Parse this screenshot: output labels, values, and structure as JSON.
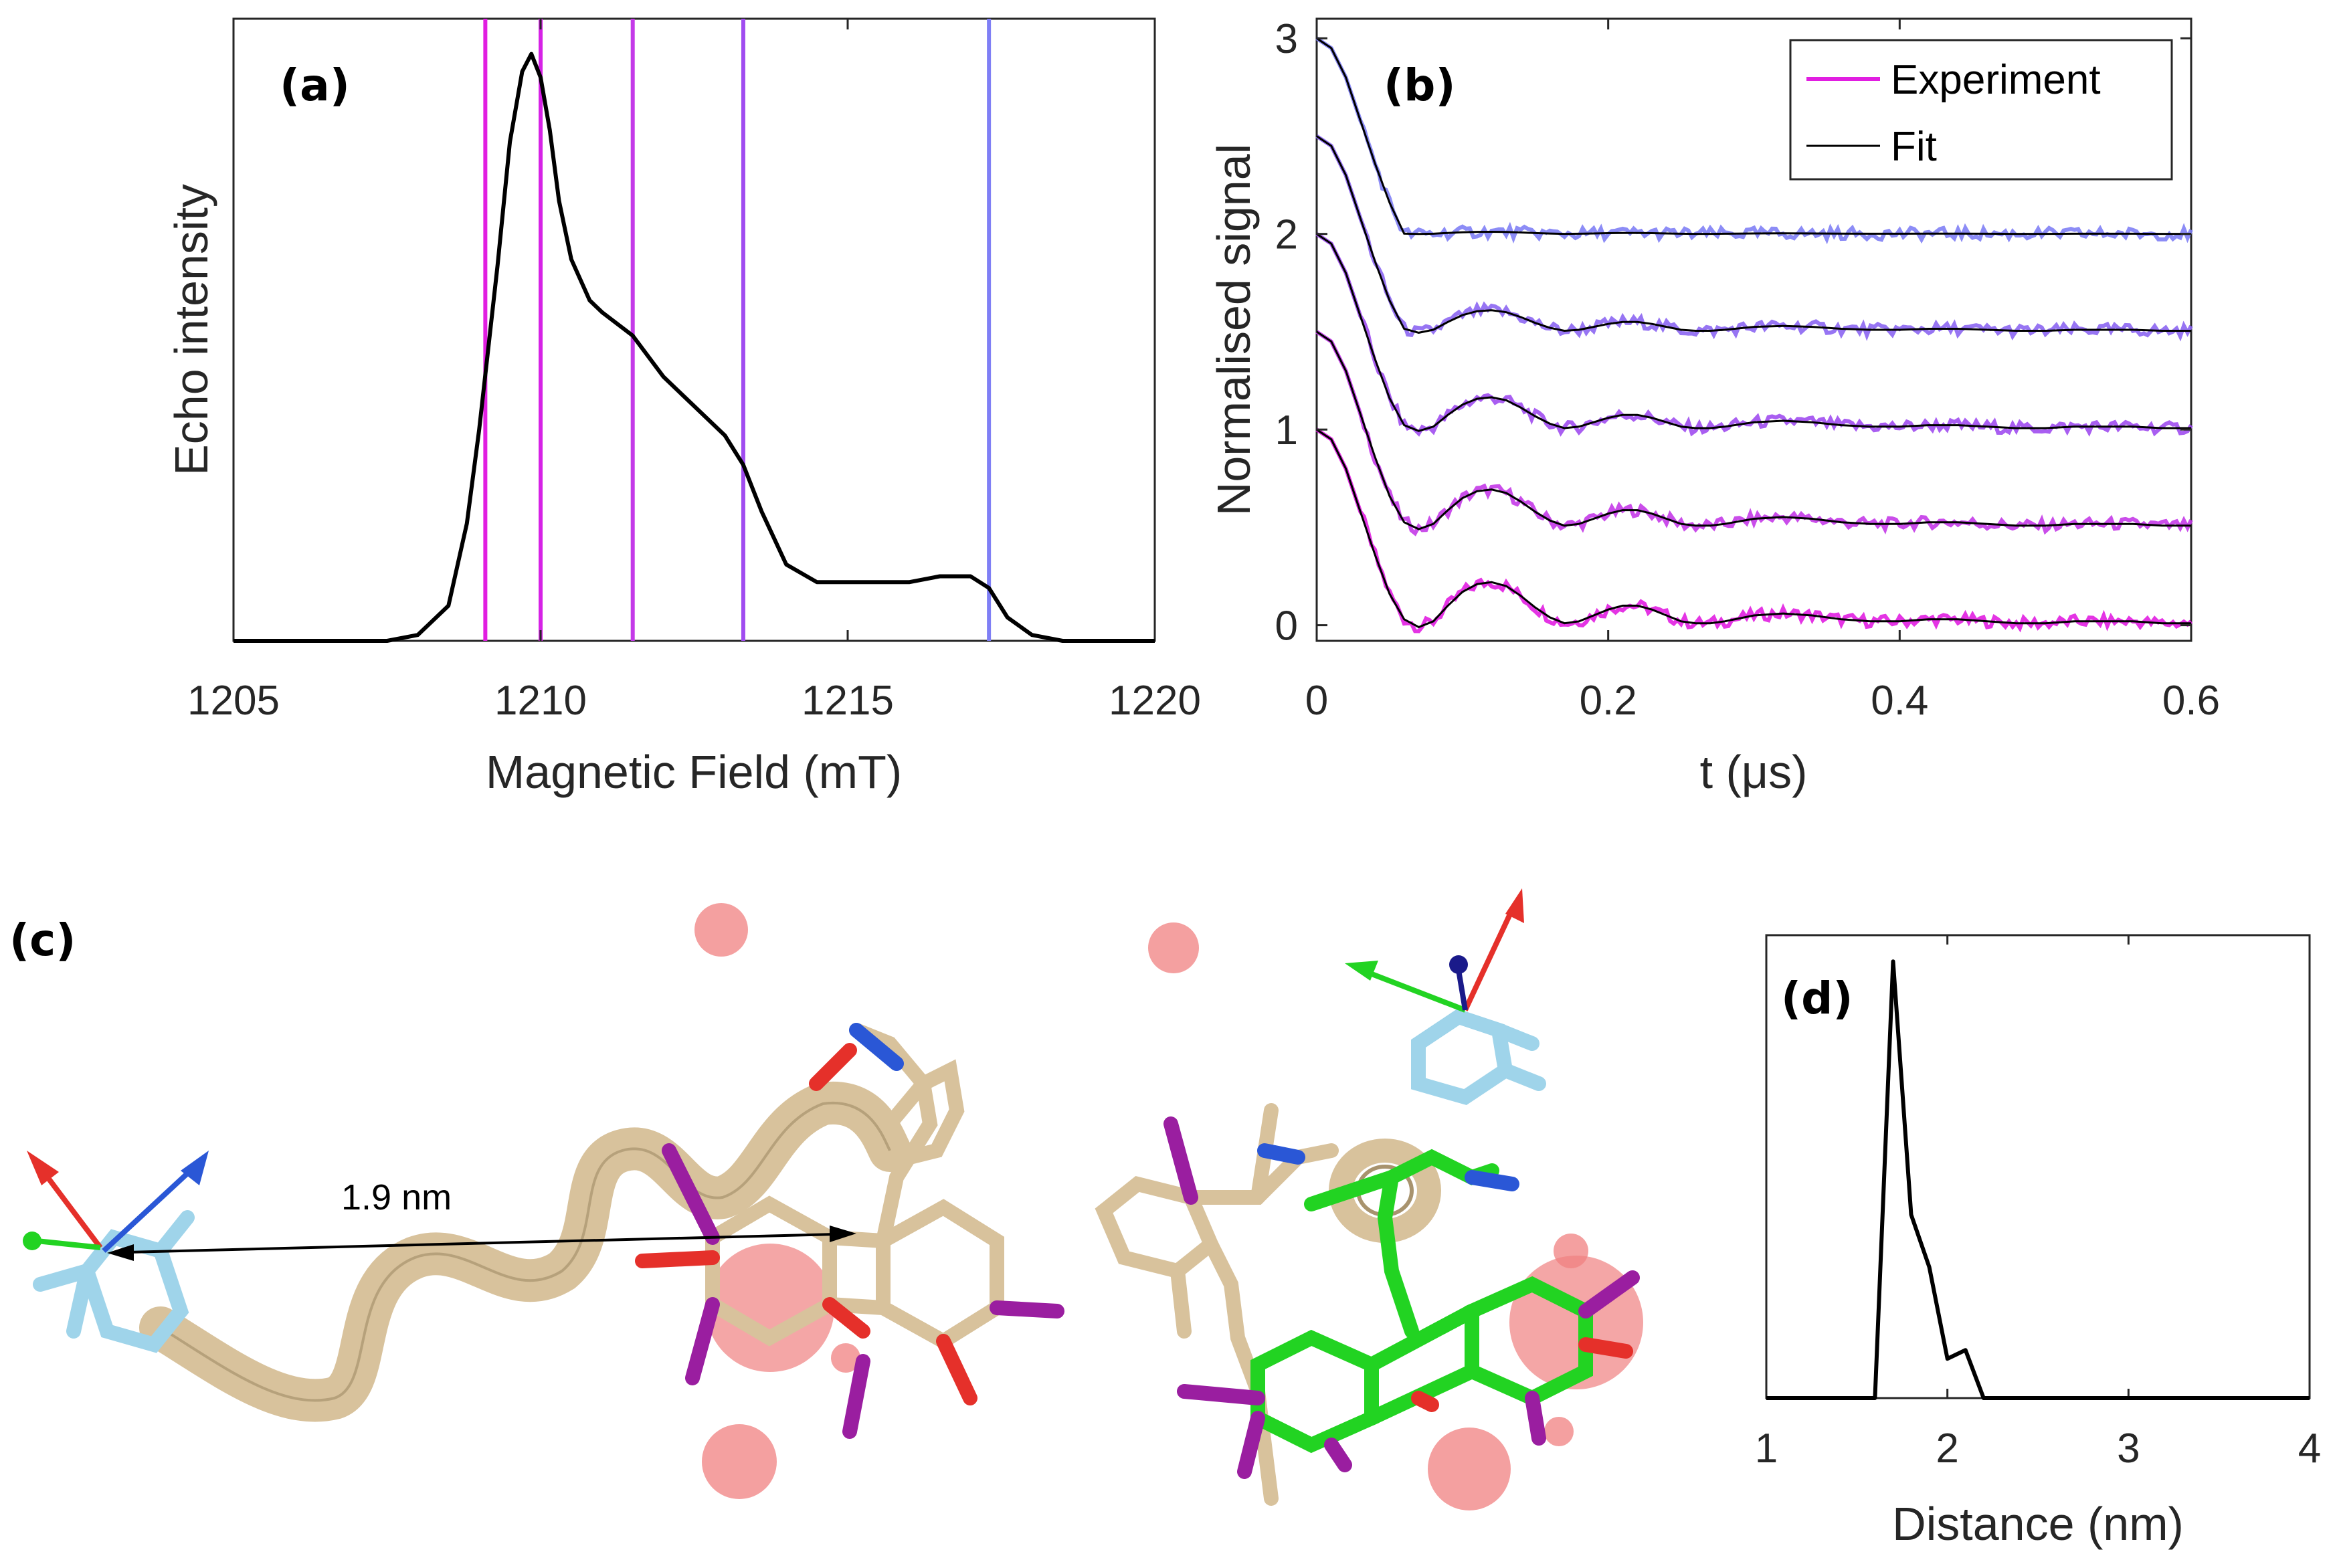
{
  "colors": {
    "axis": "#262626",
    "spectrum": "#000000",
    "experiment_magenta": "#e11ee1",
    "experiment_violet": "#a04cf0",
    "experiment_blue": "#7f7ff5",
    "fit": "#000000",
    "ribbon": "#d8c29c",
    "spin_label": "#9fd4ea",
    "ligand_green": "#22d322",
    "atom_red": "#e5302a",
    "atom_blue": "#2a57d6",
    "atom_purple": "#9a1ea0",
    "ion_sphere": "#f08080"
  },
  "panel_c": {
    "tag": "(c)",
    "distance_annotation": "1.9 nm"
  },
  "chart_data": [
    {
      "id": "a",
      "type": "line",
      "tag": "(a)",
      "xlabel": "Magnetic Field (mT)",
      "ylabel": "Echo intensity",
      "xlim": [
        1205,
        1220
      ],
      "ylim": [
        0,
        1.06
      ],
      "xticks": [
        1205,
        1210,
        1215,
        1220
      ],
      "xtick_labels": [
        "1205",
        "1210",
        "1215",
        "1220"
      ],
      "grid": false,
      "series": [
        {
          "role": "spectrum",
          "x": [
            1205,
            1207.5,
            1208,
            1208.5,
            1208.8,
            1209,
            1209.3,
            1209.5,
            1209.7,
            1209.85,
            1210,
            1210.15,
            1210.3,
            1210.5,
            1210.8,
            1211,
            1211.5,
            1212,
            1212.5,
            1213,
            1213.3,
            1213.6,
            1214,
            1214.5,
            1215,
            1216,
            1216.5,
            1217,
            1217.3,
            1217.6,
            1218,
            1218.5,
            1220
          ],
          "y": [
            0.0,
            0.0,
            0.01,
            0.06,
            0.2,
            0.36,
            0.64,
            0.85,
            0.97,
            1.0,
            0.96,
            0.87,
            0.75,
            0.65,
            0.58,
            0.56,
            0.52,
            0.45,
            0.4,
            0.35,
            0.3,
            0.22,
            0.13,
            0.1,
            0.1,
            0.1,
            0.11,
            0.11,
            0.09,
            0.04,
            0.01,
            0.0,
            0.0
          ]
        }
      ],
      "marker_lines": [
        {
          "x": 1209.1,
          "color": "#e11ee1"
        },
        {
          "x": 1210.0,
          "color": "#d622e6"
        },
        {
          "x": 1211.5,
          "color": "#c43ae8"
        },
        {
          "x": 1213.3,
          "color": "#a04cf0"
        },
        {
          "x": 1217.3,
          "color": "#7f7ff5"
        }
      ]
    },
    {
      "id": "b",
      "type": "line",
      "tag": "(b)",
      "xlabel": "t (μs)",
      "ylabel": "Normalised signal",
      "xlim": [
        0,
        0.6
      ],
      "ylim": [
        -0.08,
        3.1
      ],
      "xticks": [
        0,
        0.2,
        0.4,
        0.6
      ],
      "xtick_labels": [
        "0",
        "0.2",
        "0.4",
        "0.6"
      ],
      "yticks": [
        0,
        1,
        2,
        3
      ],
      "ytick_labels": [
        "0",
        "1",
        "2",
        "3"
      ],
      "grid": false,
      "legend": {
        "position": "top-right",
        "entries": [
          {
            "label": "Experiment",
            "color": "#e11ee1"
          },
          {
            "label": "Fit",
            "color": "#000000"
          }
        ]
      },
      "trace_shape": {
        "t": [
          0,
          0.01,
          0.02,
          0.03,
          0.04,
          0.05,
          0.06,
          0.07,
          0.08,
          0.09,
          0.1,
          0.11,
          0.12,
          0.13,
          0.14,
          0.15,
          0.16,
          0.17,
          0.18,
          0.19,
          0.2,
          0.21,
          0.22,
          0.23,
          0.24,
          0.25,
          0.26,
          0.27,
          0.28,
          0.3,
          0.32,
          0.34,
          0.36,
          0.38,
          0.4,
          0.42,
          0.44,
          0.46,
          0.48,
          0.5,
          0.52,
          0.54,
          0.56,
          0.58,
          0.6
        ],
        "fit_decay": [
          1.0,
          0.95,
          0.8,
          0.58,
          0.36,
          0.16,
          0.03,
          -0.01,
          0.02,
          0.1,
          0.17,
          0.21,
          0.22,
          0.2,
          0.15,
          0.09,
          0.04,
          0.01,
          0.02,
          0.05,
          0.08,
          0.1,
          0.1,
          0.08,
          0.05,
          0.02,
          0.01,
          0.01,
          0.02,
          0.05,
          0.06,
          0.05,
          0.03,
          0.02,
          0.02,
          0.03,
          0.03,
          0.02,
          0.01,
          0.01,
          0.02,
          0.02,
          0.02,
          0.01,
          0.01
        ]
      },
      "series": [
        {
          "offset": 0.0,
          "damping": 1.0,
          "depth": 1.0,
          "color": "#e11ee1"
        },
        {
          "offset": 0.5,
          "damping": 0.88,
          "depth": 1.0,
          "color": "#c43ae8"
        },
        {
          "offset": 1.0,
          "damping": 0.75,
          "depth": 1.0,
          "color": "#a04cf0"
        },
        {
          "offset": 1.5,
          "damping": 0.5,
          "depth": 1.0,
          "color": "#8c66f2"
        },
        {
          "offset": 2.0,
          "damping": 0.05,
          "depth": 1.0,
          "color": "#7f7ff5"
        }
      ]
    },
    {
      "id": "d",
      "type": "line",
      "tag": "(d)",
      "xlabel": "Distance (nm)",
      "ylabel": "",
      "xlim": [
        1,
        4
      ],
      "ylim": [
        0,
        1.06
      ],
      "xticks": [
        1,
        2,
        3,
        4
      ],
      "xtick_labels": [
        "1",
        "2",
        "3",
        "4"
      ],
      "grid": false,
      "series": [
        {
          "x": [
            1,
            1.6,
            1.7,
            1.8,
            1.9,
            2.0,
            2.1,
            2.2,
            4
          ],
          "y": [
            0,
            0,
            1.0,
            0.42,
            0.3,
            0.09,
            0.11,
            0,
            0
          ]
        }
      ]
    }
  ]
}
